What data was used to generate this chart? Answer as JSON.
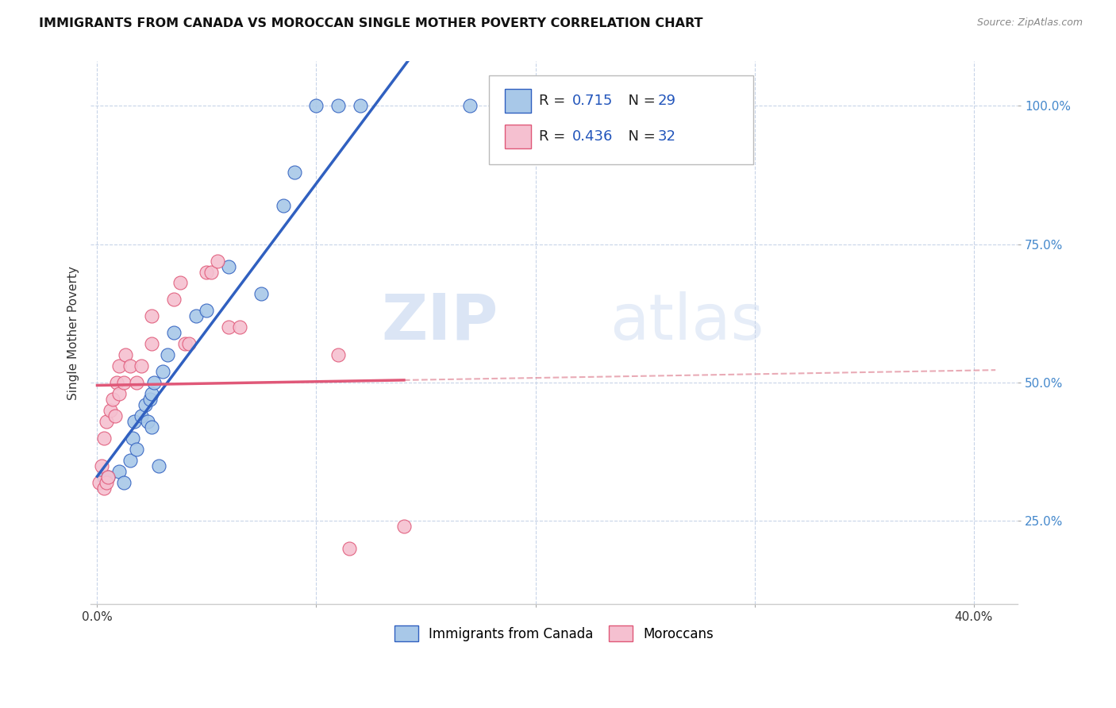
{
  "title": "IMMIGRANTS FROM CANADA VS MOROCCAN SINGLE MOTHER POVERTY CORRELATION CHART",
  "source": "Source: ZipAtlas.com",
  "ylabel": "Single Mother Poverty",
  "blue_R": 0.715,
  "blue_N": 29,
  "pink_R": 0.436,
  "pink_N": 32,
  "blue_color": "#a8c8e8",
  "pink_color": "#f5c0d0",
  "blue_line_color": "#3060c0",
  "pink_line_color": "#e05878",
  "pink_dash_color": "#e08898",
  "watermark_zip": "ZIP",
  "watermark_atlas": "atlas",
  "legend_label_blue": "Immigrants from Canada",
  "legend_label_pink": "Moroccans",
  "blue_scatter_x": [
    0.3,
    0.5,
    1.0,
    1.2,
    1.5,
    1.6,
    1.7,
    1.8,
    2.0,
    2.2,
    2.3,
    2.4,
    2.5,
    2.5,
    2.6,
    2.8,
    3.0,
    3.2,
    3.5,
    4.5,
    5.0,
    6.0,
    7.5,
    8.5,
    9.0,
    10.0,
    11.0,
    12.0,
    17.0
  ],
  "blue_scatter_y": [
    33,
    33,
    34,
    32,
    36,
    40,
    43,
    38,
    44,
    46,
    43,
    47,
    42,
    48,
    50,
    35,
    52,
    55,
    59,
    62,
    63,
    71,
    66,
    82,
    88,
    100,
    100,
    100,
    100
  ],
  "pink_scatter_x": [
    0.1,
    0.2,
    0.3,
    0.3,
    0.4,
    0.4,
    0.5,
    0.6,
    0.7,
    0.8,
    0.9,
    1.0,
    1.0,
    1.2,
    1.3,
    1.5,
    1.8,
    2.0,
    2.5,
    2.5,
    3.5,
    3.8,
    4.0,
    4.2,
    5.0,
    5.2,
    5.5,
    6.0,
    6.5,
    11.0,
    11.5,
    14.0
  ],
  "pink_scatter_y": [
    32,
    35,
    31,
    40,
    32,
    43,
    33,
    45,
    47,
    44,
    50,
    48,
    53,
    50,
    55,
    53,
    50,
    53,
    57,
    62,
    65,
    68,
    57,
    57,
    70,
    70,
    72,
    60,
    60,
    55,
    20,
    24
  ],
  "xlim": [
    -0.3,
    42
  ],
  "ylim": [
    10,
    108
  ],
  "x_ticks": [
    0,
    10,
    20,
    30,
    40
  ],
  "x_tick_labels": [
    "0.0%",
    "",
    "",
    "",
    "40.0%"
  ],
  "y_ticks": [
    25,
    50,
    75,
    100
  ],
  "y_tick_labels": [
    "25.0%",
    "50.0%",
    "75.0%",
    "100.0%"
  ]
}
